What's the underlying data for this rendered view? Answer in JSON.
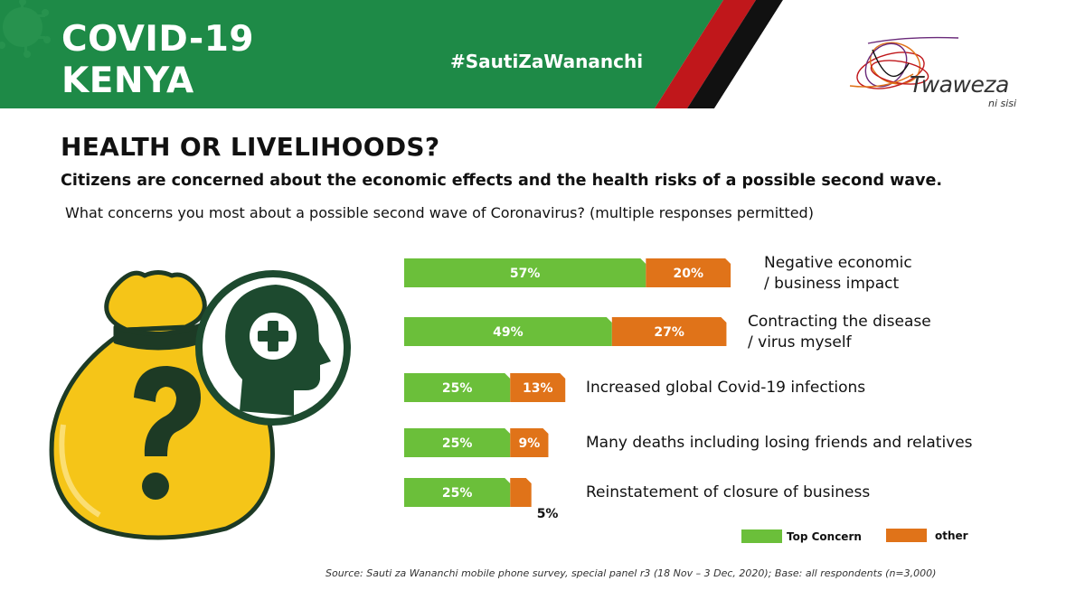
{
  "header": {
    "brand_line1": "COVID-19",
    "brand_line2": "KENYA",
    "hashtag": "#SautiZaWananchi",
    "logo_text": "Twaweza",
    "logo_sub": "ni sisi"
  },
  "headline": "HEALTH OR LIVELIHOODS?",
  "subheadline": "Citizens are concerned about the economic effects and the health risks of a possible second wave.",
  "question": "What concerns you most about  a possible second wave of Coronavirus? (multiple responses permitted)",
  "source": "Source: Sauti za Wananchi mobile phone survey, special panel r3 (18 Nov – 3 Dec, 2020);  Base: all respondents (n=3,000)",
  "colors": {
    "banner_green": "#1e8a47",
    "top_concern": "#6bbf3a",
    "other": "#e07319",
    "kenya_red": "#c0171b",
    "kenya_black": "#111111",
    "icon_dark_green": "#1d4a2f",
    "bag_yellow": "#f5c518"
  },
  "icons": [
    "virus-icon",
    "twaweza-logo",
    "money-bag-icon",
    "question-mark-icon",
    "head-plus-icon"
  ],
  "legend": [
    {
      "label": "Top Concern",
      "color": "#6bbf3a"
    },
    {
      "label": "other",
      "color": "#e07319"
    }
  ],
  "chart_data": {
    "type": "bar",
    "orientation": "horizontal",
    "stacked": true,
    "categories": [
      [
        "Negative economic",
        "/ business impact"
      ],
      [
        "Contracting the disease",
        "/ virus myself"
      ],
      [
        "Increased global Covid-19 infections"
      ],
      [
        "Many deaths including losing friends and relatives"
      ],
      [
        "Reinstatement of closure of business"
      ]
    ],
    "series": [
      {
        "name": "Top Concern",
        "values": [
          57,
          49,
          25,
          25,
          25
        ],
        "labels": [
          "57%",
          "49%",
          "25%",
          "25%",
          "25%"
        ]
      },
      {
        "name": "other",
        "values": [
          20,
          27,
          13,
          9,
          5
        ],
        "labels": [
          "20%",
          "27%",
          "13%",
          "9%",
          "5%"
        ]
      }
    ],
    "unit": "%",
    "legend_position": "bottom-right"
  }
}
